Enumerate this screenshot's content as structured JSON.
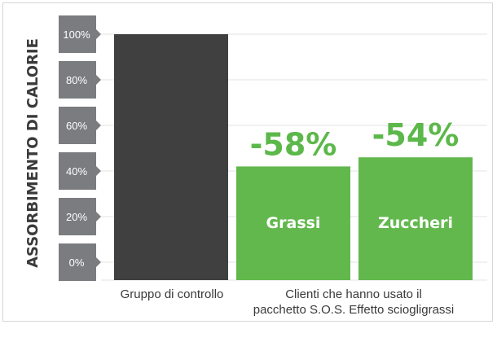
{
  "chart_data": {
    "type": "bar",
    "title": "",
    "ylabel": "ASSORBIMENTO DI CALORIE",
    "ylim": [
      0,
      100
    ],
    "ticks": [
      "100%",
      "80%",
      "60%",
      "40%",
      "20%",
      "0%"
    ],
    "tick_values": [
      100,
      80,
      60,
      40,
      20,
      0
    ],
    "grid": true,
    "bars": [
      {
        "value": 100,
        "color": "#404040",
        "label": "",
        "change": ""
      },
      {
        "value": 42,
        "color": "#62b84d",
        "label": "Grassi",
        "change": "-58%"
      },
      {
        "value": 46,
        "color": "#62b84d",
        "label": "Zuccheri",
        "change": "-54%"
      }
    ],
    "categories": [
      {
        "lines": [
          "Gruppo di controllo"
        ]
      },
      {
        "lines": [
          "Clienti che hanno usato il",
          "pacchetto S.O.S. Effetto sciogligrassi"
        ]
      }
    ],
    "colors": {
      "tick_box": "#7b7c80",
      "grid": "#e3e3e3"
    }
  }
}
